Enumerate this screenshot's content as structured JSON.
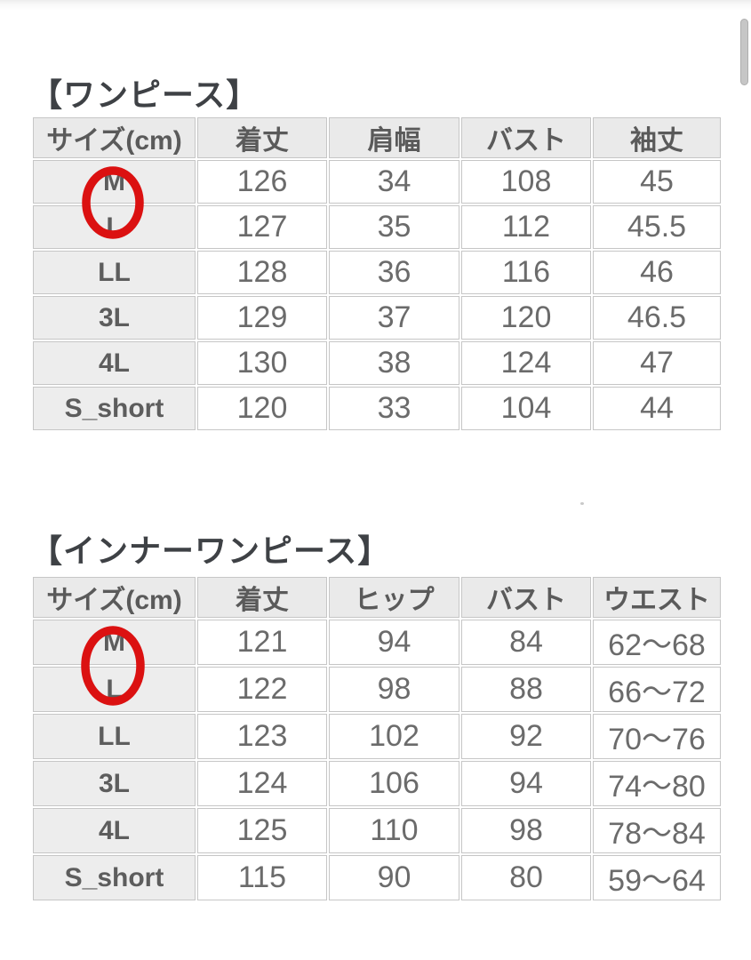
{
  "page": {
    "background": "#ffffff",
    "scrollbar_color": "#c6c6c6"
  },
  "annotation": {
    "shape": "ellipse",
    "color": "#db1111",
    "meaning": "size M circled in both tables"
  },
  "sections": [
    {
      "title": "【ワンピース】",
      "table": {
        "headers": [
          "サイズ(cm)",
          "着丈",
          "肩幅",
          "バスト",
          "袖丈"
        ],
        "rows": [
          {
            "size": "M",
            "circled": true,
            "values": [
              "126",
              "34",
              "108",
              "45"
            ]
          },
          {
            "size": "L",
            "circled": false,
            "values": [
              "127",
              "35",
              "112",
              "45.5"
            ]
          },
          {
            "size": "LL",
            "circled": false,
            "values": [
              "128",
              "36",
              "116",
              "46"
            ]
          },
          {
            "size": "3L",
            "circled": false,
            "values": [
              "129",
              "37",
              "120",
              "46.5"
            ]
          },
          {
            "size": "4L",
            "circled": false,
            "values": [
              "130",
              "38",
              "124",
              "47"
            ]
          },
          {
            "size": "S_short",
            "circled": false,
            "values": [
              "120",
              "33",
              "104",
              "44"
            ]
          }
        ]
      }
    },
    {
      "title": "【インナーワンピース】",
      "table": {
        "headers": [
          "サイズ(cm)",
          "着丈",
          "ヒップ",
          "バスト",
          "ウエスト"
        ],
        "rows": [
          {
            "size": "M",
            "circled": true,
            "values": [
              "121",
              "94",
              "84",
              "62～68"
            ]
          },
          {
            "size": "L",
            "circled": false,
            "values": [
              "122",
              "98",
              "88",
              "66～72"
            ]
          },
          {
            "size": "LL",
            "circled": false,
            "values": [
              "123",
              "102",
              "92",
              "70～76"
            ]
          },
          {
            "size": "3L",
            "circled": false,
            "values": [
              "124",
              "106",
              "94",
              "74～80"
            ]
          },
          {
            "size": "4L",
            "circled": false,
            "values": [
              "125",
              "110",
              "98",
              "78～84"
            ]
          },
          {
            "size": "S_short",
            "circled": false,
            "values": [
              "115",
              "90",
              "80",
              "59～64"
            ]
          }
        ]
      }
    }
  ]
}
